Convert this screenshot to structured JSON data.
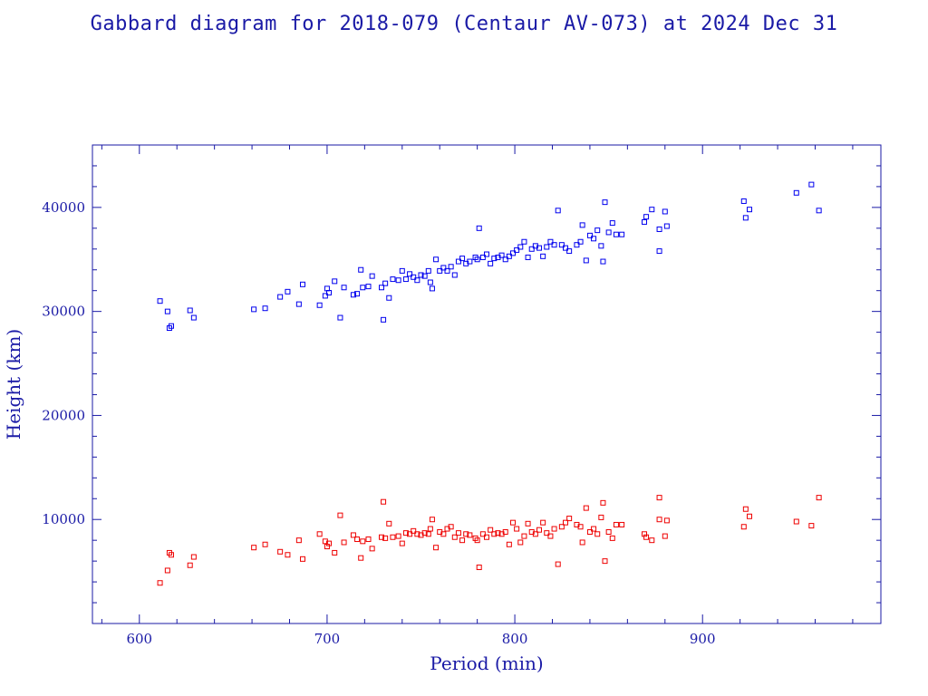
{
  "chart_data": {
    "type": "scatter",
    "title": "Gabbard diagram for 2018-079 (Centaur AV-073) at 2024 Dec 31",
    "xlabel": "Period (min)",
    "ylabel": "Height (km)",
    "xlim": [
      575,
      995
    ],
    "ylim": [
      0,
      46000
    ],
    "xticks": [
      600,
      700,
      800,
      900
    ],
    "yticks": [
      10000,
      20000,
      30000,
      40000
    ],
    "xtick_labels": [
      "600",
      "700",
      "800",
      "900"
    ],
    "ytick_labels": [
      "10000",
      "20000",
      "30000",
      "40000"
    ],
    "colors": {
      "axis": "#1a1aa6",
      "apogee": "#0000ee",
      "perigee": "#ee0000"
    },
    "series": [
      {
        "role": "apogee",
        "color": "#0000ee",
        "points": [
          [
            611,
            31000
          ],
          [
            615,
            30000
          ],
          [
            616,
            28400
          ],
          [
            617,
            28600
          ],
          [
            627,
            30100
          ],
          [
            629,
            29400
          ],
          [
            661,
            30200
          ],
          [
            667,
            30300
          ],
          [
            675,
            31400
          ],
          [
            679,
            31900
          ],
          [
            685,
            30700
          ],
          [
            687,
            32600
          ],
          [
            696,
            30600
          ],
          [
            699,
            31500
          ],
          [
            700,
            32200
          ],
          [
            701,
            31800
          ],
          [
            704,
            32900
          ],
          [
            707,
            29400
          ],
          [
            709,
            32300
          ],
          [
            714,
            31600
          ],
          [
            716,
            31700
          ],
          [
            718,
            34000
          ],
          [
            719,
            32300
          ],
          [
            722,
            32400
          ],
          [
            724,
            33400
          ],
          [
            729,
            32300
          ],
          [
            730,
            29200
          ],
          [
            731,
            32700
          ],
          [
            733,
            31300
          ],
          [
            735,
            33100
          ],
          [
            738,
            33000
          ],
          [
            740,
            33900
          ],
          [
            742,
            33100
          ],
          [
            744,
            33600
          ],
          [
            746,
            33300
          ],
          [
            748,
            33000
          ],
          [
            750,
            33500
          ],
          [
            752,
            33400
          ],
          [
            754,
            33900
          ],
          [
            755,
            32800
          ],
          [
            756,
            32200
          ],
          [
            758,
            35000
          ],
          [
            760,
            33900
          ],
          [
            762,
            34200
          ],
          [
            764,
            33900
          ],
          [
            766,
            34300
          ],
          [
            768,
            33500
          ],
          [
            770,
            34800
          ],
          [
            772,
            35100
          ],
          [
            774,
            34600
          ],
          [
            776,
            34800
          ],
          [
            779,
            35200
          ],
          [
            780,
            35000
          ],
          [
            781,
            38000
          ],
          [
            783,
            35200
          ],
          [
            785,
            35500
          ],
          [
            787,
            34600
          ],
          [
            789,
            35100
          ],
          [
            791,
            35200
          ],
          [
            793,
            35400
          ],
          [
            795,
            35000
          ],
          [
            797,
            35300
          ],
          [
            799,
            35600
          ],
          [
            801,
            35900
          ],
          [
            803,
            36200
          ],
          [
            805,
            36700
          ],
          [
            807,
            35200
          ],
          [
            809,
            36000
          ],
          [
            811,
            36300
          ],
          [
            813,
            36100
          ],
          [
            815,
            35300
          ],
          [
            817,
            36200
          ],
          [
            819,
            36700
          ],
          [
            821,
            36400
          ],
          [
            823,
            39700
          ],
          [
            825,
            36400
          ],
          [
            827,
            36100
          ],
          [
            829,
            35800
          ],
          [
            833,
            36400
          ],
          [
            835,
            36700
          ],
          [
            836,
            38300
          ],
          [
            838,
            34900
          ],
          [
            840,
            37300
          ],
          [
            842,
            37000
          ],
          [
            844,
            37800
          ],
          [
            846,
            36300
          ],
          [
            847,
            34800
          ],
          [
            848,
            40500
          ],
          [
            850,
            37600
          ],
          [
            852,
            38500
          ],
          [
            854,
            37400
          ],
          [
            857,
            37400
          ],
          [
            869,
            38600
          ],
          [
            870,
            39100
          ],
          [
            873,
            39800
          ],
          [
            877,
            35800
          ],
          [
            877,
            37900
          ],
          [
            880,
            39600
          ],
          [
            881,
            38200
          ],
          [
            922,
            40600
          ],
          [
            923,
            39000
          ],
          [
            925,
            39800
          ],
          [
            950,
            41400
          ],
          [
            958,
            42200
          ],
          [
            962,
            39700
          ]
        ]
      },
      {
        "role": "perigee",
        "color": "#ee0000",
        "points": [
          [
            611,
            3900
          ],
          [
            615,
            5100
          ],
          [
            616,
            6800
          ],
          [
            617,
            6600
          ],
          [
            627,
            5600
          ],
          [
            629,
            6400
          ],
          [
            661,
            7300
          ],
          [
            667,
            7600
          ],
          [
            675,
            6900
          ],
          [
            679,
            6600
          ],
          [
            685,
            8000
          ],
          [
            687,
            6200
          ],
          [
            696,
            8600
          ],
          [
            699,
            7900
          ],
          [
            700,
            7400
          ],
          [
            701,
            7700
          ],
          [
            704,
            6800
          ],
          [
            707,
            10400
          ],
          [
            709,
            7800
          ],
          [
            714,
            8500
          ],
          [
            716,
            8100
          ],
          [
            718,
            6300
          ],
          [
            719,
            7900
          ],
          [
            722,
            8100
          ],
          [
            724,
            7200
          ],
          [
            729,
            8300
          ],
          [
            730,
            11700
          ],
          [
            731,
            8200
          ],
          [
            733,
            9600
          ],
          [
            735,
            8300
          ],
          [
            738,
            8400
          ],
          [
            740,
            7700
          ],
          [
            742,
            8700
          ],
          [
            744,
            8600
          ],
          [
            746,
            8900
          ],
          [
            748,
            8600
          ],
          [
            750,
            8500
          ],
          [
            752,
            8700
          ],
          [
            754,
            8600
          ],
          [
            755,
            9100
          ],
          [
            756,
            10000
          ],
          [
            758,
            7300
          ],
          [
            760,
            8800
          ],
          [
            762,
            8600
          ],
          [
            764,
            9100
          ],
          [
            766,
            9300
          ],
          [
            768,
            8300
          ],
          [
            770,
            8700
          ],
          [
            772,
            8000
          ],
          [
            774,
            8600
          ],
          [
            776,
            8500
          ],
          [
            779,
            8200
          ],
          [
            780,
            8000
          ],
          [
            781,
            5400
          ],
          [
            783,
            8600
          ],
          [
            785,
            8300
          ],
          [
            787,
            9000
          ],
          [
            789,
            8600
          ],
          [
            791,
            8700
          ],
          [
            793,
            8600
          ],
          [
            795,
            8800
          ],
          [
            797,
            7600
          ],
          [
            799,
            9700
          ],
          [
            801,
            9100
          ],
          [
            803,
            7800
          ],
          [
            805,
            8400
          ],
          [
            807,
            9600
          ],
          [
            809,
            8800
          ],
          [
            811,
            8600
          ],
          [
            813,
            9000
          ],
          [
            815,
            9700
          ],
          [
            817,
            8700
          ],
          [
            819,
            8400
          ],
          [
            821,
            9100
          ],
          [
            823,
            5700
          ],
          [
            825,
            9300
          ],
          [
            827,
            9700
          ],
          [
            829,
            10100
          ],
          [
            833,
            9500
          ],
          [
            835,
            9300
          ],
          [
            836,
            7800
          ],
          [
            838,
            11100
          ],
          [
            840,
            8800
          ],
          [
            842,
            9100
          ],
          [
            844,
            8600
          ],
          [
            846,
            10200
          ],
          [
            847,
            11600
          ],
          [
            848,
            6000
          ],
          [
            850,
            8800
          ],
          [
            852,
            8200
          ],
          [
            854,
            9500
          ],
          [
            857,
            9500
          ],
          [
            869,
            8600
          ],
          [
            870,
            8300
          ],
          [
            873,
            8000
          ],
          [
            877,
            12100
          ],
          [
            877,
            10000
          ],
          [
            880,
            8400
          ],
          [
            881,
            9900
          ],
          [
            922,
            9300
          ],
          [
            923,
            11000
          ],
          [
            925,
            10300
          ],
          [
            950,
            9800
          ],
          [
            958,
            9400
          ],
          [
            962,
            12100
          ]
        ]
      }
    ]
  }
}
